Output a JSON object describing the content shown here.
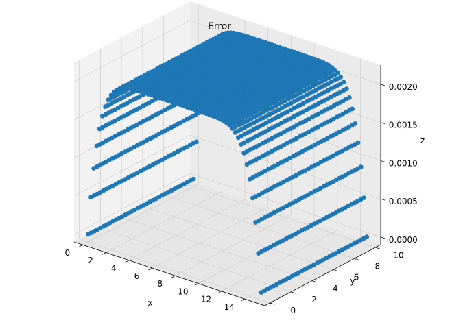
{
  "chart_data": {
    "type": "scatter",
    "projection": "3d",
    "title": "Error",
    "xlabel": "x",
    "ylabel": "y",
    "zlabel": "z",
    "xlim": [
      -0.75,
      15.75
    ],
    "ylim": [
      -0.5,
      10.5
    ],
    "zlim": [
      -0.0001,
      0.00225
    ],
    "x_ticks": [
      "0",
      "2",
      "4",
      "6",
      "8",
      "10",
      "12",
      "14"
    ],
    "y_ticks": [
      "0",
      "2",
      "4",
      "6",
      "8",
      "10"
    ],
    "z_ticks": [
      "0.0000",
      "0.0005",
      "0.0010",
      "0.0015",
      "0.0020"
    ],
    "grid": true,
    "marker_color": "#1f77b4",
    "surface": {
      "x_range": [
        0,
        15
      ],
      "y_range": [
        0,
        10
      ],
      "z_peak": 0.0021,
      "description": "z is a flat ridge along y, rising from 0 at x=0 and x=15 to about 0.0021 across x ≈ 3–12"
    }
  }
}
